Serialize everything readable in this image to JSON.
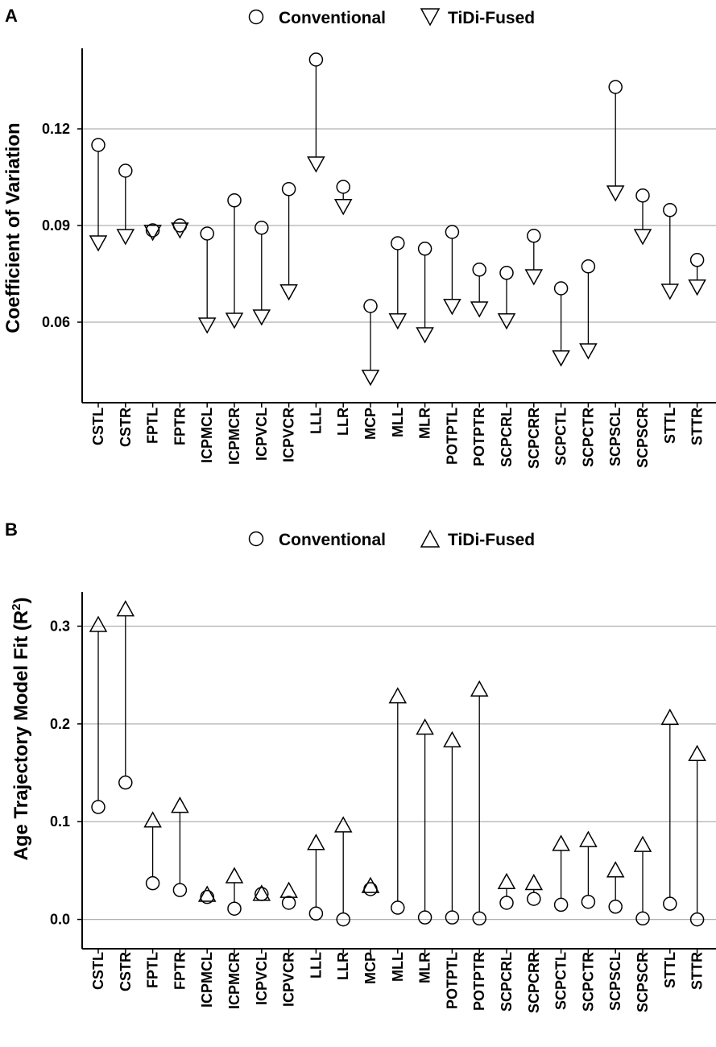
{
  "chart_data": [
    {
      "type": "scatter",
      "panel_label": "A",
      "title": "",
      "xlabel": "",
      "ylabel": "Coefficient of Variation",
      "ylim": [
        0.035,
        0.145
      ],
      "yticks": [
        0.06,
        0.09,
        0.12
      ],
      "ytick_labels": [
        "0.06",
        "0.09",
        "0.12"
      ],
      "grid": true,
      "legend_position": "top",
      "categories": [
        "CSTL",
        "CSTR",
        "FPTL",
        "FPTR",
        "ICPMCL",
        "ICPMCR",
        "ICPVCL",
        "ICPVCR",
        "LLL",
        "LLR",
        "MCP",
        "MLL",
        "MLR",
        "POTPTL",
        "POTPTR",
        "SCPCRL",
        "SCPCRR",
        "SCPCTL",
        "SCPCTR",
        "SCPSCL",
        "SCPSCR",
        "STTL",
        "STTR"
      ],
      "series": [
        {
          "name": "Conventional",
          "marker": "circle",
          "values": [
            0.115,
            0.107,
            0.0885,
            0.09,
            0.0875,
            0.0978,
            0.0893,
            0.1013,
            0.1415,
            0.102,
            0.065,
            0.0845,
            0.0828,
            0.088,
            0.0763,
            0.0753,
            0.0868,
            0.0705,
            0.0773,
            0.133,
            0.0993,
            0.0948,
            0.0793
          ]
        },
        {
          "name": "TiDi-Fused",
          "marker": "triangle-down",
          "values": [
            0.0845,
            0.0865,
            0.0878,
            0.0885,
            0.059,
            0.0605,
            0.0615,
            0.0693,
            0.109,
            0.0958,
            0.0428,
            0.0603,
            0.056,
            0.0648,
            0.064,
            0.0603,
            0.074,
            0.0488,
            0.051,
            0.1,
            0.0865,
            0.0695,
            0.0708
          ]
        }
      ]
    },
    {
      "type": "scatter",
      "panel_label": "B",
      "title": "",
      "xlabel": "",
      "ylabel_main": "Age Trajectory Model Fit (R",
      "ylabel_sup": "2",
      "ylabel_end": ")",
      "ylim": [
        -0.03,
        0.335
      ],
      "yticks": [
        0.0,
        0.1,
        0.2,
        0.3
      ],
      "ytick_labels": [
        "0.0",
        "0.1",
        "0.2",
        "0.3"
      ],
      "grid": true,
      "legend_position": "top",
      "categories": [
        "CSTL",
        "CSTR",
        "FPTL",
        "FPTR",
        "ICPMCL",
        "ICPMCR",
        "ICPVCL",
        "ICPVCR",
        "LLL",
        "LLR",
        "MCP",
        "MLL",
        "MLR",
        "POTPTL",
        "POTPTR",
        "SCPCRL",
        "SCPCRR",
        "SCPCTL",
        "SCPCTR",
        "SCPSCL",
        "SCPSCR",
        "STTL",
        "STTR"
      ],
      "series": [
        {
          "name": "Conventional",
          "marker": "circle",
          "values": [
            0.115,
            0.14,
            0.037,
            0.03,
            0.023,
            0.011,
            0.026,
            0.017,
            0.006,
            0.0,
            0.031,
            0.012,
            0.002,
            0.002,
            0.001,
            0.017,
            0.021,
            0.015,
            0.018,
            0.013,
            0.001,
            0.016,
            0.0
          ]
        },
        {
          "name": "TiDi-Fused",
          "marker": "triangle-up",
          "values": [
            0.302,
            0.318,
            0.102,
            0.117,
            0.026,
            0.045,
            0.027,
            0.03,
            0.079,
            0.097,
            0.035,
            0.229,
            0.197,
            0.184,
            0.236,
            0.039,
            0.038,
            0.078,
            0.082,
            0.051,
            0.077,
            0.207,
            0.17
          ]
        }
      ]
    }
  ]
}
